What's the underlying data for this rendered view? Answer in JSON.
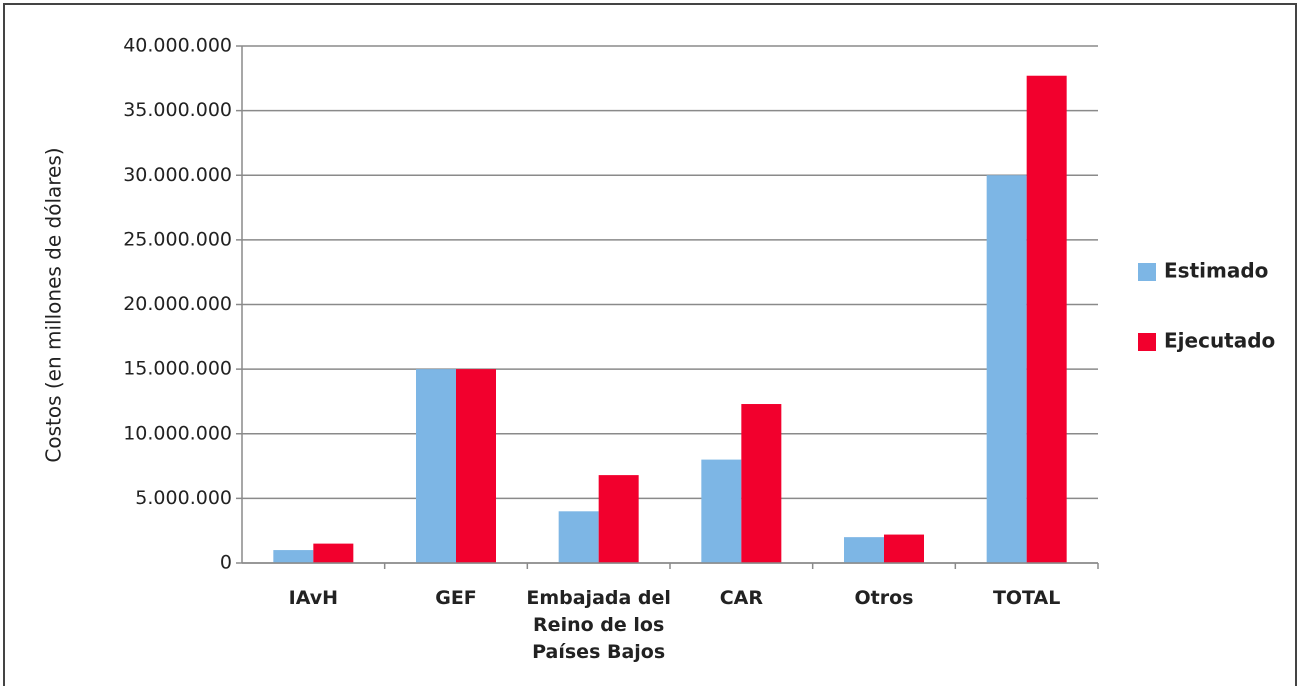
{
  "chart_data": {
    "type": "bar",
    "y_label": "Costos (en millones de dólares)",
    "categories": [
      "IAvH",
      "GEF",
      "Embajada del Reino de los Países Bajos",
      "CAR",
      "Otros",
      "TOTAL"
    ],
    "series": [
      {
        "name": "Estimado",
        "color": "#7db6e5",
        "values": [
          1000000,
          15000000,
          4000000,
          8000000,
          2000000,
          30000000
        ]
      },
      {
        "name": "Ejecutado",
        "color": "#f2002d",
        "values": [
          1500000,
          15000000,
          6800000,
          12300000,
          2200000,
          37700000
        ]
      }
    ],
    "ylim": [
      0,
      40000000
    ],
    "yticks": [
      0,
      {
        "value": 5000000,
        "label": "5.000.000"
      },
      {
        "value": 10000000,
        "label": "10.000.000"
      },
      {
        "value": 15000000,
        "label": "15.000.000"
      },
      {
        "value": 20000000,
        "label": "20.000.000"
      },
      {
        "value": 25000000,
        "label": "25.000.000"
      },
      {
        "value": 30000000,
        "label": "30.000.000"
      },
      {
        "value": 35000000,
        "label": "35.000.000"
      },
      {
        "value": 40000000,
        "label": "40.000.000"
      }
    ],
    "grid": true,
    "legend": "right"
  }
}
